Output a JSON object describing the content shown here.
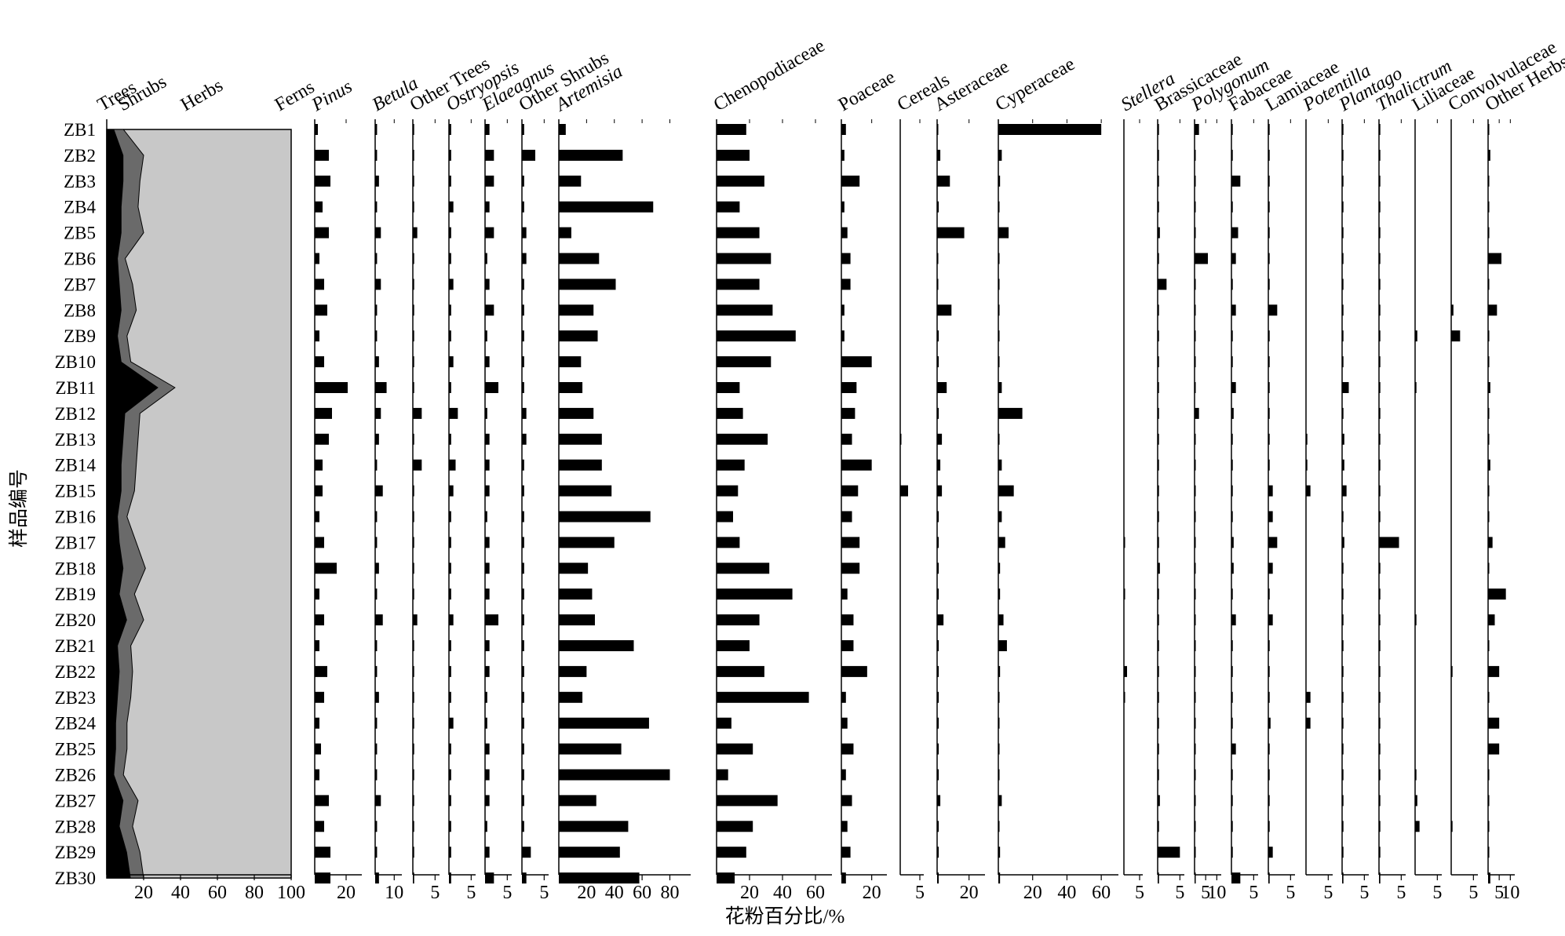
{
  "chart_data": {
    "type": "bar",
    "samples": [
      "ZB1",
      "ZB2",
      "ZB3",
      "ZB4",
      "ZB5",
      "ZB6",
      "ZB7",
      "ZB8",
      "ZB9",
      "ZB10",
      "ZB11",
      "ZB12",
      "ZB13",
      "ZB14",
      "ZB15",
      "ZB16",
      "ZB17",
      "ZB18",
      "ZB19",
      "ZB20",
      "ZB21",
      "ZB22",
      "ZB23",
      "ZB24",
      "ZB25",
      "ZB26",
      "ZB27",
      "ZB28",
      "ZB29",
      "ZB30"
    ],
    "ylabel": "样品编号",
    "xlabel": "花粉百分比/%",
    "summary": {
      "type": "area",
      "labels": [
        "Trees",
        "Shrubs",
        "Herbs",
        "Ferns"
      ],
      "ticks": [
        "20",
        "40",
        "60",
        "80",
        "100"
      ],
      "xlim": [
        0,
        100
      ],
      "trees_cum": [
        4,
        9,
        9,
        8,
        8,
        6,
        7,
        8,
        6,
        8,
        28,
        10,
        9,
        8,
        8,
        6,
        7,
        9,
        7,
        11,
        6,
        7,
        6,
        5,
        5,
        4,
        9,
        7,
        11,
        13
      ],
      "shrubs_cum": [
        9,
        20,
        18,
        17,
        20,
        10,
        14,
        16,
        11,
        13,
        37,
        18,
        17,
        16,
        15,
        11,
        16,
        21,
        15,
        20,
        13,
        14,
        13,
        11,
        11,
        9,
        17,
        14,
        18,
        20
      ]
    },
    "taxa": [
      {
        "name": "Pinus",
        "italic": true,
        "ticks": [
          "20"
        ],
        "max": 30,
        "values": [
          2,
          9,
          10,
          5,
          9,
          3,
          6,
          8,
          3,
          6,
          21,
          11,
          9,
          5,
          5,
          3,
          6,
          14,
          3,
          6,
          3,
          8,
          6,
          3,
          4,
          3,
          9,
          6,
          10,
          10
        ]
      },
      {
        "name": "Betula",
        "italic": true,
        "ticks": [
          "10"
        ],
        "max": 14,
        "values": [
          1,
          1,
          2,
          1,
          3,
          1,
          3,
          1,
          1,
          2,
          6,
          3,
          2,
          1,
          4,
          1,
          1,
          2,
          1,
          4,
          1,
          1,
          2,
          1,
          1,
          1,
          3,
          1,
          1,
          2
        ]
      },
      {
        "name": "Other Trees",
        "italic": false,
        "ticks": [
          "5"
        ],
        "max": 6,
        "values": [
          0.3,
          0.3,
          0.3,
          0.3,
          1,
          0.3,
          0.3,
          0.3,
          0.3,
          0.3,
          0.3,
          2,
          0.3,
          2,
          0.3,
          0.3,
          0.3,
          0.3,
          0.3,
          1,
          0.3,
          0.3,
          0.3,
          0.3,
          0.3,
          0.3,
          0.3,
          0.3,
          0.3,
          0.3
        ]
      },
      {
        "name": "Ostryopsis",
        "italic": true,
        "ticks": [
          "5"
        ],
        "max": 6,
        "values": [
          0.5,
          0.5,
          0.5,
          1,
          0.5,
          0.5,
          1,
          0.5,
          0.5,
          1,
          0.5,
          2,
          0.5,
          1.5,
          1,
          0.5,
          0.5,
          0.5,
          0.5,
          1,
          0.5,
          0.5,
          0.5,
          1,
          0.5,
          0.5,
          0.5,
          0.5,
          0.5,
          0.5
        ]
      },
      {
        "name": "Elaeagnus",
        "italic": true,
        "ticks": [
          "5"
        ],
        "max": 6,
        "values": [
          1,
          2,
          2,
          1,
          2,
          0.5,
          1,
          2,
          0.5,
          1,
          3,
          0.5,
          1,
          1,
          1,
          0.5,
          1,
          1,
          1,
          3,
          1,
          1,
          0.5,
          0.5,
          1,
          1,
          1,
          0.5,
          1,
          2
        ]
      },
      {
        "name": "Other Shrubs",
        "italic": false,
        "ticks": [
          "5"
        ],
        "max": 6,
        "values": [
          0.5,
          3,
          0.5,
          0.5,
          1,
          1,
          0.5,
          0.5,
          0.5,
          0.5,
          0.5,
          1,
          1,
          0.5,
          0.5,
          0.5,
          0.5,
          0.5,
          0.5,
          0.5,
          0.5,
          0.5,
          0.5,
          0.5,
          0.5,
          0.5,
          0.5,
          0.5,
          2,
          1
        ]
      },
      {
        "name": "Artemisia",
        "italic": true,
        "ticks": [
          "20",
          "40",
          "60",
          "80"
        ],
        "max": 95,
        "values": [
          5,
          46,
          16,
          68,
          9,
          29,
          41,
          25,
          28,
          16,
          17,
          25,
          31,
          31,
          38,
          66,
          40,
          21,
          24,
          26,
          54,
          20,
          17,
          65,
          45,
          80,
          27,
          50,
          44,
          58
        ]
      },
      {
        "name": "Chenopodiaceae",
        "italic": false,
        "ticks": [
          "20",
          "40",
          "60"
        ],
        "max": 70,
        "values": [
          18,
          20,
          29,
          14,
          26,
          33,
          26,
          34,
          48,
          33,
          14,
          16,
          31,
          17,
          13,
          10,
          14,
          32,
          46,
          26,
          20,
          29,
          56,
          9,
          22,
          7,
          37,
          22,
          18,
          11
        ]
      },
      {
        "name": "Poaceae",
        "italic": false,
        "ticks": [
          "20"
        ],
        "max": 30,
        "values": [
          3,
          2,
          12,
          2,
          4,
          6,
          6,
          2,
          2,
          20,
          10,
          9,
          7,
          20,
          11,
          7,
          12,
          12,
          4,
          8,
          8,
          17,
          3,
          4,
          8,
          3,
          7,
          4,
          6,
          3
        ]
      },
      {
        "name": "Cereals",
        "italic": false,
        "ticks": [
          "5"
        ],
        "max": 6,
        "values": [
          0,
          0,
          0,
          0,
          0,
          0,
          0,
          0,
          0,
          0,
          0,
          0,
          0.3,
          0,
          2,
          0,
          0,
          0,
          0,
          0,
          0,
          0,
          0,
          0,
          0,
          0,
          0,
          0,
          0,
          0
        ]
      },
      {
        "name": "Asteraceae",
        "italic": false,
        "ticks": [
          "20"
        ],
        "max": 30,
        "values": [
          0.5,
          2,
          8,
          1,
          17,
          0.5,
          0.5,
          9,
          1,
          1,
          6,
          1,
          3,
          2,
          3,
          1,
          1,
          1,
          1,
          4,
          1,
          1,
          1,
          1,
          1,
          1,
          2,
          1,
          1,
          1
        ]
      },
      {
        "name": "Cyperaceae",
        "italic": false,
        "ticks": [
          "20",
          "40",
          "60"
        ],
        "max": 70,
        "values": [
          60,
          2,
          1,
          0.5,
          6,
          0.5,
          0.5,
          0.5,
          0.5,
          0.5,
          2,
          14,
          0.5,
          2,
          9,
          2,
          4,
          1,
          1,
          3,
          5,
          1,
          0.5,
          0.5,
          0.5,
          0.5,
          2,
          0.5,
          1,
          1
        ]
      },
      {
        "name": "Stellera",
        "italic": true,
        "ticks": [
          "5"
        ],
        "max": 6,
        "values": [
          0,
          0,
          0,
          0,
          0,
          0,
          0,
          0,
          0,
          0,
          0,
          0,
          0,
          0,
          0,
          0,
          0.2,
          0,
          0.2,
          0,
          0,
          1,
          0.2,
          0,
          0,
          0,
          0,
          0,
          0,
          0
        ]
      },
      {
        "name": "Brassicaceae",
        "italic": false,
        "ticks": [
          "5"
        ],
        "max": 6,
        "values": [
          0.3,
          0.3,
          0.3,
          0.3,
          0.5,
          0.3,
          2,
          0.3,
          0.3,
          0.3,
          0.3,
          0.3,
          0.3,
          0.3,
          0.3,
          0.3,
          0.3,
          0.5,
          0.3,
          0.3,
          0.3,
          0.3,
          0.3,
          0.3,
          0.3,
          0.3,
          0.5,
          0.3,
          5,
          0.3
        ]
      },
      {
        "name": "Polygonum",
        "italic": true,
        "ticks": [
          "5",
          "10"
        ],
        "max": 12,
        "values": [
          2,
          0.3,
          0.3,
          0.3,
          0.3,
          6,
          0.3,
          0.3,
          0.3,
          0.3,
          0.3,
          2,
          0.3,
          0.3,
          0.3,
          0.3,
          0.3,
          0.3,
          0.3,
          0.3,
          0.3,
          0.3,
          0.3,
          0.3,
          0.3,
          0.3,
          0.3,
          0.3,
          0.3,
          0.3
        ]
      },
      {
        "name": "Fabaceae",
        "italic": false,
        "ticks": [
          "5"
        ],
        "max": 6,
        "values": [
          0.3,
          0.3,
          2,
          0.3,
          1.5,
          1,
          0.3,
          1,
          0.3,
          0.3,
          1,
          0.5,
          0.3,
          0.3,
          0.3,
          0.3,
          0.5,
          0.5,
          0.3,
          1,
          0.3,
          0.3,
          0.3,
          0.3,
          1,
          0.3,
          0.3,
          0.3,
          0.3,
          2
        ]
      },
      {
        "name": "Lamiaceae",
        "italic": false,
        "ticks": [
          "5"
        ],
        "max": 6,
        "values": [
          0.3,
          0.3,
          0.3,
          0.3,
          0.3,
          0.3,
          0.3,
          2,
          0.3,
          0.3,
          0.3,
          0.3,
          0.3,
          0.3,
          1,
          1,
          2,
          1,
          0.3,
          1,
          0.3,
          0.3,
          0.3,
          0.5,
          0.3,
          0.3,
          0.3,
          0.3,
          1,
          0.3
        ]
      },
      {
        "name": "Potentilla",
        "italic": true,
        "ticks": [
          "5"
        ],
        "max": 6,
        "values": [
          0,
          0,
          0,
          0,
          0,
          0,
          0,
          0,
          0,
          0,
          0,
          0,
          0.3,
          0.3,
          1,
          0,
          0,
          0,
          0,
          0,
          0,
          0,
          1,
          1,
          0,
          0,
          0,
          0,
          0,
          0
        ]
      },
      {
        "name": "Plantago",
        "italic": true,
        "ticks": [
          "5"
        ],
        "max": 6,
        "values": [
          0.3,
          0.3,
          0.3,
          0.3,
          0.3,
          0.3,
          0.3,
          0.3,
          0.3,
          0.3,
          1.5,
          0.3,
          0.5,
          0.5,
          1,
          0.3,
          0.5,
          0.3,
          0.3,
          0.3,
          0.3,
          0.3,
          0.3,
          0.3,
          0.3,
          0.3,
          0.3,
          0.3,
          0.3,
          0.3
        ]
      },
      {
        "name": "Thalictrum",
        "italic": true,
        "ticks": [
          "5"
        ],
        "max": 6,
        "values": [
          0.3,
          0.3,
          0.3,
          0.3,
          0.3,
          0.3,
          0.3,
          0.3,
          0.3,
          0.3,
          0.3,
          0.3,
          0.3,
          0.3,
          0.3,
          0.3,
          4.5,
          0.3,
          0.3,
          0.3,
          0.3,
          0.3,
          0.3,
          0.3,
          0.3,
          0.3,
          0.3,
          0.3,
          0.3,
          0.3
        ]
      },
      {
        "name": "Liliaceae",
        "italic": false,
        "ticks": [
          "5"
        ],
        "max": 6,
        "values": [
          0,
          0,
          0,
          0,
          0,
          0,
          0,
          0,
          0.5,
          0,
          0.3,
          0,
          0,
          0,
          0,
          0,
          0,
          0,
          0,
          0.3,
          0,
          0,
          0,
          0,
          0,
          0.3,
          0.5,
          1,
          0,
          0
        ]
      },
      {
        "name": "Convolvulaceae",
        "italic": false,
        "ticks": [
          "5"
        ],
        "max": 6,
        "values": [
          0,
          0,
          0,
          0,
          0,
          0,
          0,
          0.5,
          2,
          0,
          0,
          0,
          0,
          0,
          0,
          0,
          0,
          0,
          0,
          0,
          0,
          0.3,
          0,
          0,
          0,
          0,
          0,
          0.3,
          0,
          0
        ]
      },
      {
        "name": "Other Herbs",
        "italic": false,
        "ticks": [
          "5",
          "10"
        ],
        "max": 12,
        "values": [
          0.5,
          1,
          0.5,
          0.5,
          0.5,
          6,
          0.5,
          4,
          0.5,
          0.5,
          1,
          0.5,
          0.5,
          1,
          0.5,
          0.5,
          2,
          0.5,
          8,
          3,
          0.5,
          5,
          0.5,
          5,
          5,
          0.5,
          0.5,
          0.5,
          0.5,
          1
        ]
      }
    ]
  }
}
